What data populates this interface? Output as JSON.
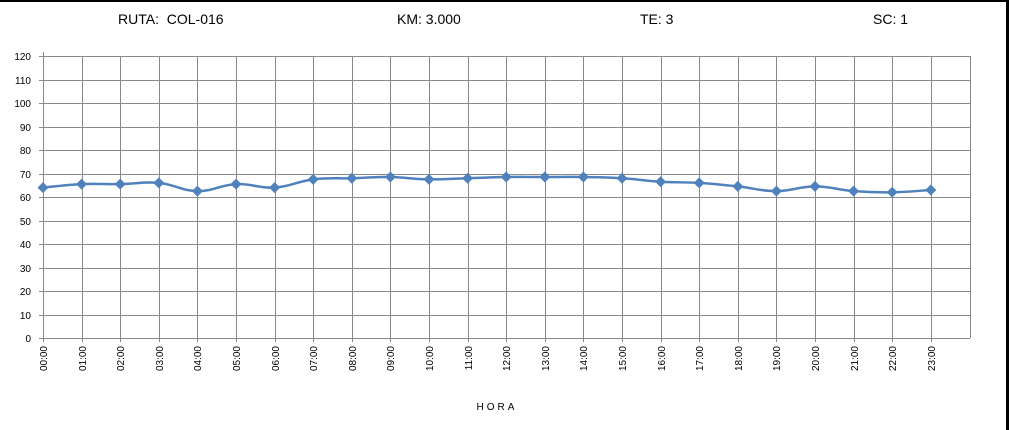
{
  "header": {
    "route": "RUTA:  COL-016",
    "km": "KM: 3.000",
    "te": "TE: 3",
    "sc": "SC: 1"
  },
  "chart_data": {
    "type": "line",
    "xlabel": "HORA",
    "ylabel": "",
    "ylim": [
      0,
      120
    ],
    "yticks": [
      0,
      10,
      20,
      30,
      40,
      50,
      60,
      70,
      80,
      90,
      100,
      110,
      120
    ],
    "grid": true,
    "categories": [
      "00:00",
      "01:00",
      "02:00",
      "03:00",
      "04:00",
      "05:00",
      "06:00",
      "07:00",
      "08:00",
      "09:00",
      "10:00",
      "11:00",
      "12:00",
      "13:00",
      "14:00",
      "15:00",
      "16:00",
      "17:00",
      "18:00",
      "19:00",
      "20:00",
      "21:00",
      "22:00",
      "23:00"
    ],
    "series": [
      {
        "values": [
          64,
          65.5,
          65.5,
          66,
          62.5,
          65.5,
          64,
          67.5,
          68,
          68.5,
          67.5,
          68,
          68.5,
          68.5,
          68.5,
          68,
          66.5,
          66,
          64.5,
          62.5,
          64.5,
          62.5,
          62,
          63
        ],
        "color": "#4f81bd"
      }
    ],
    "line_color": "#4f81bd",
    "grid_color": "#888888"
  }
}
